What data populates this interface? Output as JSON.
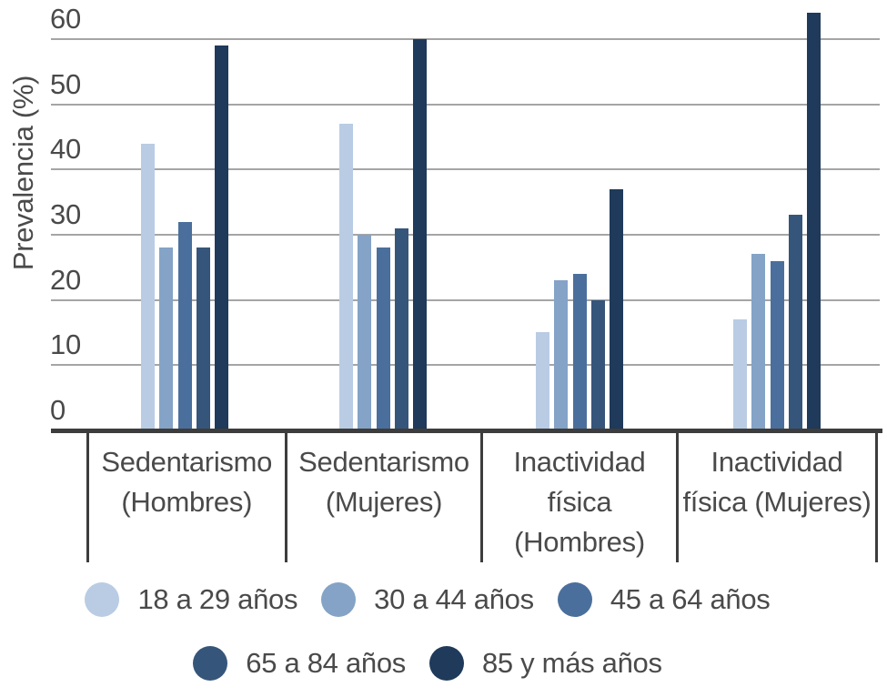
{
  "chart_data": {
    "type": "bar",
    "title": "",
    "ylabel": "Prevalencia (%)",
    "ylim": [
      0,
      60
    ],
    "yticks": [
      0,
      10,
      20,
      30,
      40,
      50,
      60
    ],
    "grid": "horizontal",
    "legend_position": "bottom, two rows",
    "categories": [
      "Sedentarismo (Hombres)",
      "Sedentarismo (Mujeres)",
      "Inactividad física (Hombres)",
      "Inactividad física (Mujeres)"
    ],
    "category_label_lines": [
      [
        "Sedentarismo",
        "(Hombres)"
      ],
      [
        "Sedentarismo",
        "(Mujeres)"
      ],
      [
        "Inactividad",
        "física",
        "(Hombres)"
      ],
      [
        "Inactividad",
        "física (Mujeres)"
      ]
    ],
    "series": [
      {
        "name": "18 a 29 años",
        "color": "#b9cce4",
        "values": [
          44,
          47,
          15,
          17
        ]
      },
      {
        "name": "30 a 44 años",
        "color": "#84a3c6",
        "values": [
          28,
          30,
          23,
          27
        ]
      },
      {
        "name": "45 a 64 años",
        "color": "#4a6f9c",
        "values": [
          32,
          28,
          24,
          26
        ]
      },
      {
        "name": "65 a 84 años",
        "color": "#36557a",
        "values": [
          28,
          31,
          20,
          33
        ]
      },
      {
        "name": "85 y más años",
        "color": "#1f3a5a",
        "values": [
          59,
          60,
          37,
          64
        ]
      }
    ],
    "legend_rows": [
      [
        0,
        1,
        2
      ],
      [
        3,
        4
      ]
    ],
    "colors": {
      "axis": "#3d3d3d",
      "gridline": "#a5a5a5",
      "text": "#4a4a4a",
      "background": "#ffffff"
    }
  }
}
